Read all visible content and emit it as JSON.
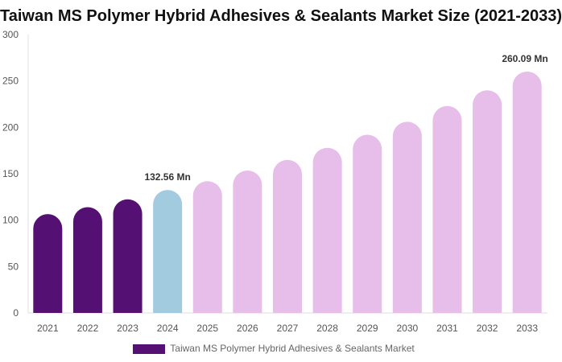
{
  "chart_data": {
    "type": "bar",
    "title": "Taiwan MS Polymer Hybrid Adhesives & Sealants Market Size (2021-2033)",
    "categories": [
      "2021",
      "2022",
      "2023",
      "2024",
      "2025",
      "2026",
      "2027",
      "2028",
      "2029",
      "2030",
      "2031",
      "2032",
      "2033"
    ],
    "series": [
      {
        "name": "Taiwan MS Polymer Hybrid Adhesives & Sealants Market",
        "values": [
          106.5,
          114,
          122.5,
          132.56,
          142,
          153.5,
          165,
          178,
          192,
          206,
          223,
          240,
          260.09
        ]
      }
    ],
    "bar_colors": [
      "#541173",
      "#541173",
      "#541173",
      "#a3cbe0",
      "#e7bde9",
      "#e7bde9",
      "#e7bde9",
      "#e7bde9",
      "#e7bde9",
      "#e7bde9",
      "#e7bde9",
      "#e7bde9",
      "#e7bde9"
    ],
    "data_labels": [
      {
        "category": "2024",
        "text": "132.56 Mn"
      },
      {
        "category": "2033",
        "text": "260.09 Mn"
      }
    ],
    "ylim": [
      0,
      300
    ],
    "yticks": [
      0,
      50,
      100,
      150,
      200,
      250,
      300
    ],
    "grid": false,
    "legend_position": "bottom",
    "legend_color": "#541173"
  }
}
